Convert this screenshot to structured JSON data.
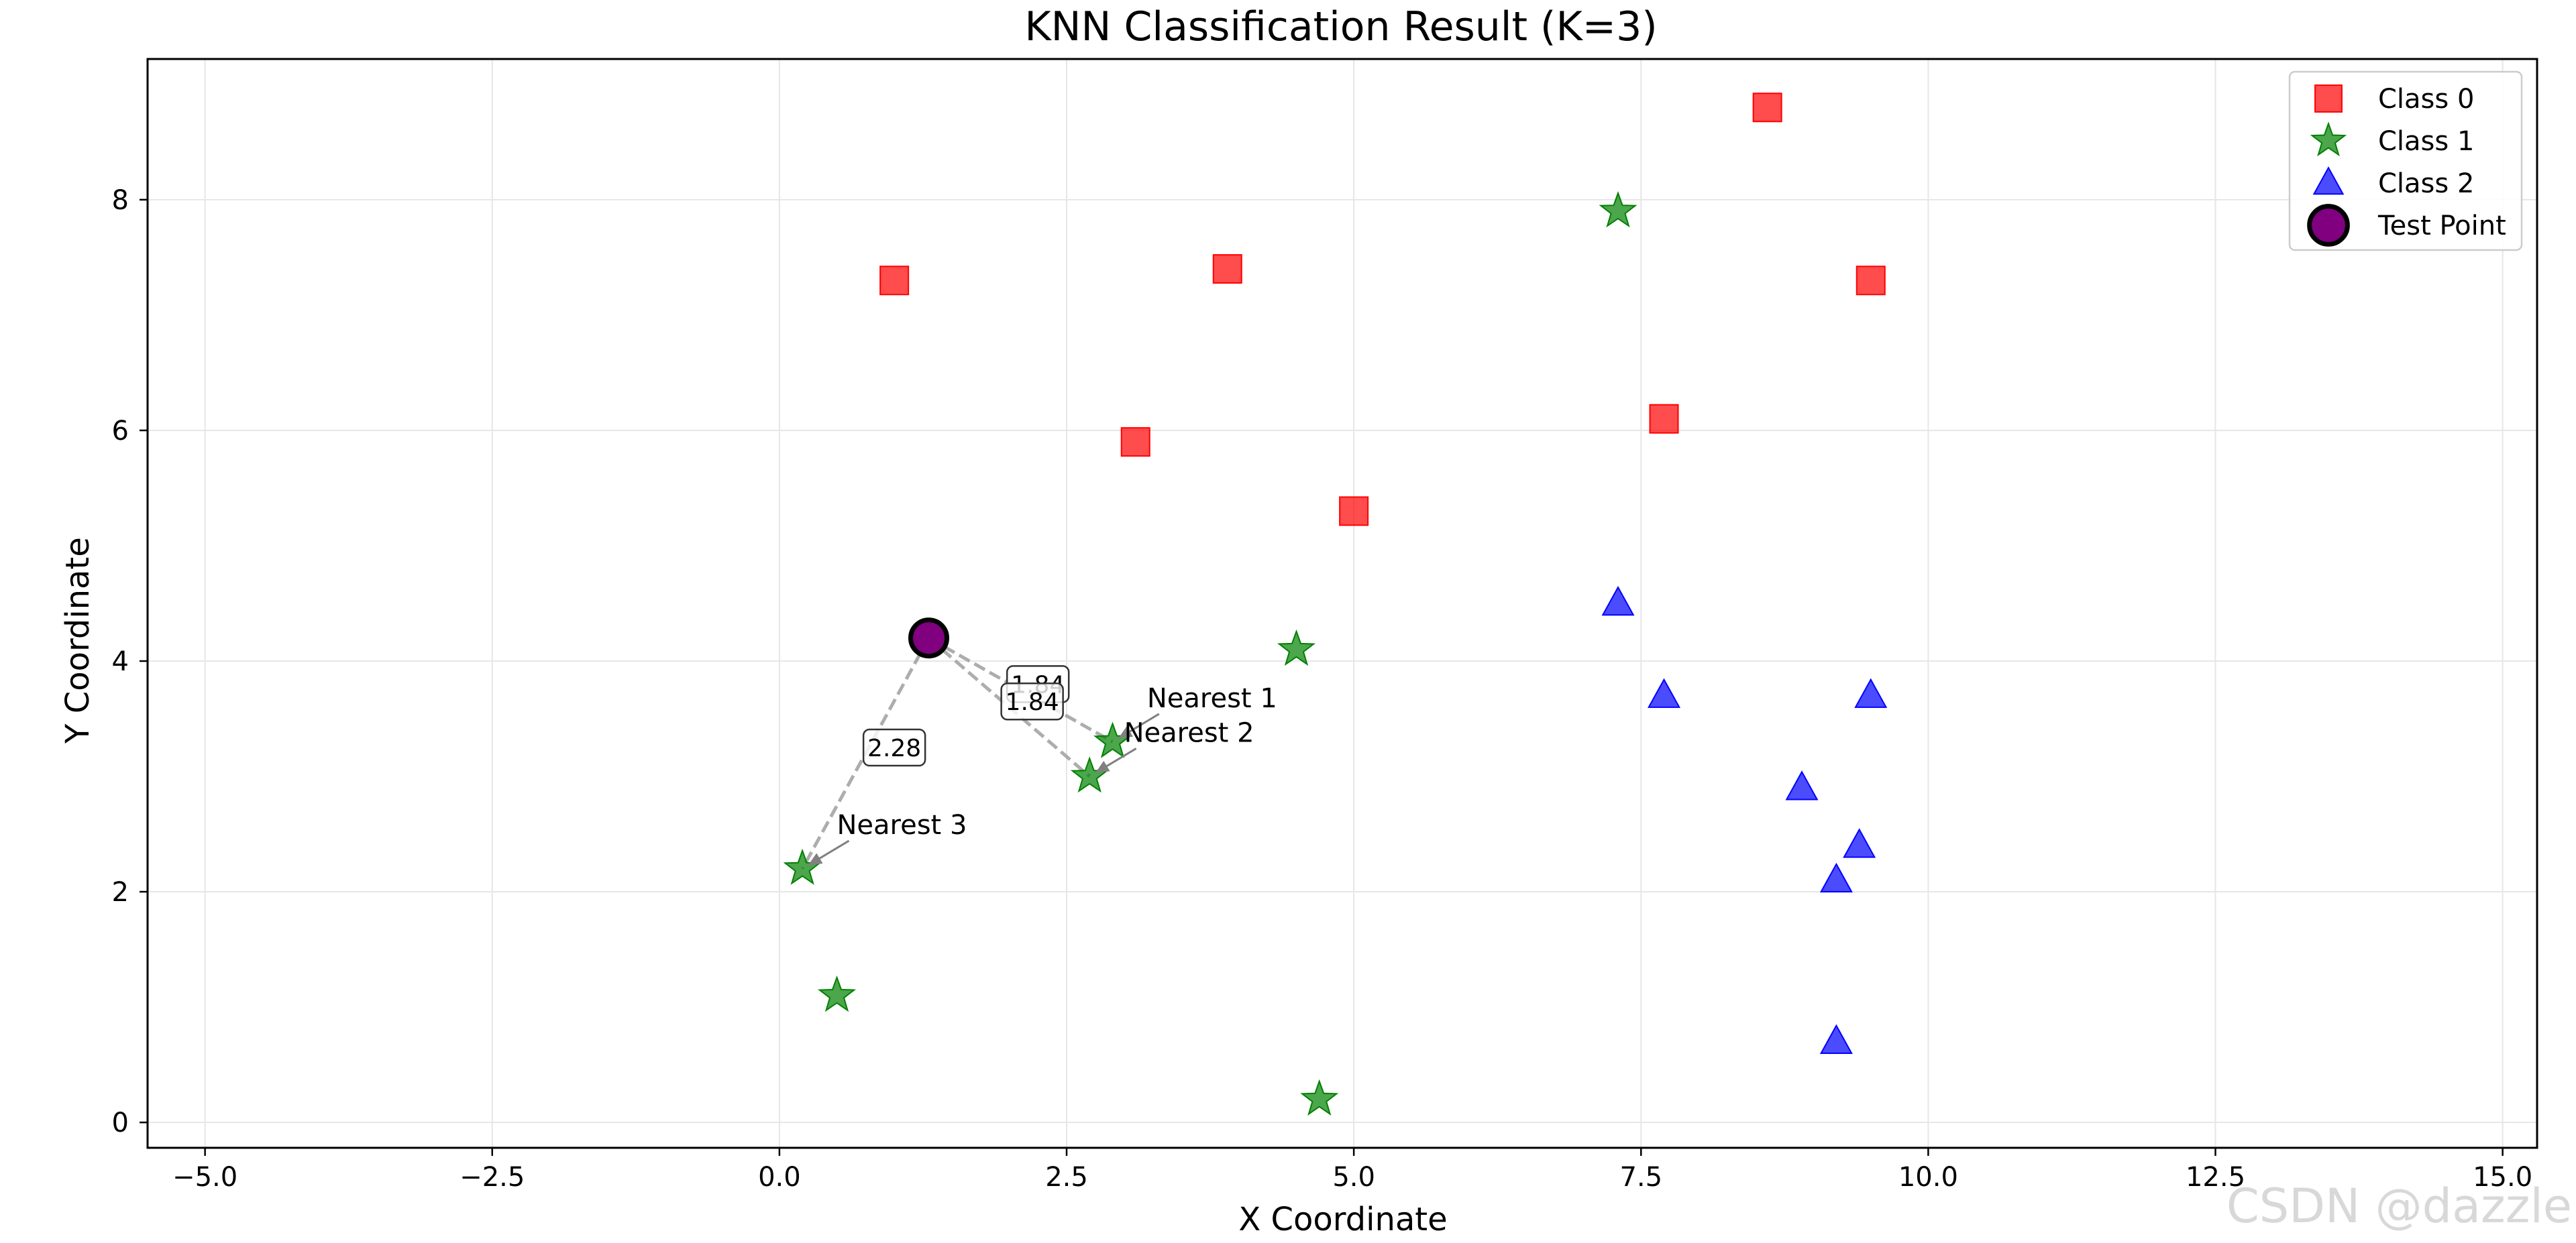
{
  "chart_data": {
    "type": "scatter",
    "title": "KNN Classification Result (K=3)",
    "xlabel": "X Coordinate",
    "ylabel": "Y Coordinate",
    "xlim": [
      -5.5,
      15.3
    ],
    "ylim": [
      -0.22,
      9.22
    ],
    "xticks": [
      -5.0,
      -2.5,
      0.0,
      2.5,
      5.0,
      7.5,
      10.0,
      12.5,
      15.0
    ],
    "xtick_labels": [
      "−5.0",
      "−2.5",
      "0.0",
      "2.5",
      "5.0",
      "7.5",
      "10.0",
      "12.5",
      "15.0"
    ],
    "yticks": [
      0,
      2,
      4,
      6,
      8
    ],
    "ytick_labels": [
      "0",
      "2",
      "4",
      "6",
      "8"
    ],
    "grid": true,
    "legend_position": "top-right",
    "series": [
      {
        "name": "Class 0",
        "marker": "square",
        "color": "#ff0000",
        "points": [
          [
            1.0,
            7.3
          ],
          [
            3.9,
            7.4
          ],
          [
            3.1,
            5.9
          ],
          [
            5.0,
            5.3
          ],
          [
            7.7,
            6.1
          ],
          [
            8.6,
            8.8
          ],
          [
            9.5,
            7.3
          ]
        ]
      },
      {
        "name": "Class 1",
        "marker": "star",
        "color": "#008000",
        "points": [
          [
            7.3,
            7.9
          ],
          [
            4.5,
            4.1
          ],
          [
            2.9,
            3.3
          ],
          [
            2.7,
            3.0
          ],
          [
            0.2,
            2.2
          ],
          [
            0.5,
            1.1
          ],
          [
            4.7,
            0.2
          ]
        ]
      },
      {
        "name": "Class 2",
        "marker": "triangle",
        "color": "#0000ff",
        "points": [
          [
            7.3,
            4.5
          ],
          [
            7.7,
            3.7
          ],
          [
            9.5,
            3.7
          ],
          [
            8.9,
            2.9
          ],
          [
            9.4,
            2.4
          ],
          [
            9.2,
            2.1
          ],
          [
            9.2,
            0.7
          ]
        ]
      }
    ],
    "test_point": {
      "name": "Test Point",
      "x": 1.3,
      "y": 4.2,
      "color": "#800080"
    },
    "neighbors": [
      {
        "label": "Nearest 1",
        "x": 2.9,
        "y": 3.3,
        "distance": "1.84",
        "label_x": 3.2,
        "label_y": 3.6
      },
      {
        "label": "Nearest 2",
        "x": 2.7,
        "y": 3.0,
        "distance": "1.84",
        "label_x": 3.0,
        "label_y": 3.3
      },
      {
        "label": "Nearest 3",
        "x": 0.2,
        "y": 2.2,
        "distance": "2.28",
        "label_x": 0.5,
        "label_y": 2.5
      }
    ],
    "distance_label_positions": [
      [
        2.25,
        3.8
      ],
      [
        2.2,
        3.65
      ],
      [
        1.0,
        3.25
      ]
    ]
  },
  "watermark": "CSDN @dazzle"
}
